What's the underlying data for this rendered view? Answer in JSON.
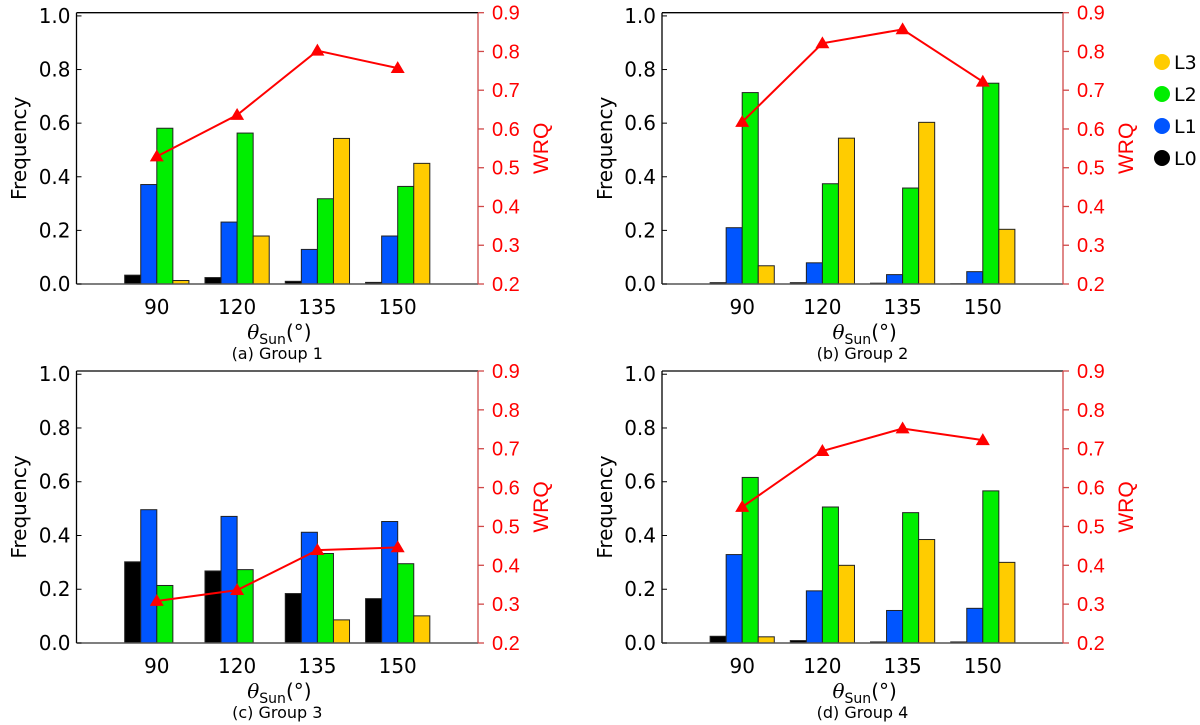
{
  "chart_data": [
    {
      "type": "bar",
      "title": "(a) Group 1",
      "categories": [
        "90",
        "120",
        "135",
        "150"
      ],
      "xlabel": "θ",
      "xlabel_sub": "Sun",
      "xlabel_unit": "(°)",
      "ylabel": "Frequency",
      "ylim": [
        0,
        1.0
      ],
      "yticks": [
        "0.0",
        "0.2",
        "0.4",
        "0.6",
        "0.8",
        "1.0"
      ],
      "y2label": "WRQ",
      "y2lim": [
        0.2,
        0.9
      ],
      "y2ticks": [
        "0.2",
        "0.3",
        "0.4",
        "0.5",
        "0.6",
        "0.7",
        "0.8",
        "0.9"
      ],
      "series": [
        {
          "name": "L0",
          "values": [
            0.033,
            0.024,
            0.01,
            0.006
          ]
        },
        {
          "name": "L1",
          "values": [
            0.371,
            0.231,
            0.129,
            0.179
          ]
        },
        {
          "name": "L2",
          "values": [
            0.581,
            0.563,
            0.318,
            0.364
          ]
        },
        {
          "name": "L3",
          "values": [
            0.013,
            0.179,
            0.543,
            0.45
          ]
        }
      ],
      "line": {
        "name": "WRQ",
        "values": [
          0.529,
          0.636,
          0.802,
          0.757
        ]
      }
    },
    {
      "type": "bar",
      "title": "(b) Group 2",
      "categories": [
        "90",
        "120",
        "135",
        "150"
      ],
      "xlabel": "θ",
      "xlabel_sub": "Sun",
      "xlabel_unit": "(°)",
      "ylabel": "Frequency",
      "ylim": [
        0,
        1.0
      ],
      "yticks": [
        "0.0",
        "0.2",
        "0.4",
        "0.6",
        "0.8",
        "1.0"
      ],
      "y2label": "WRQ",
      "y2lim": [
        0.2,
        0.9
      ],
      "y2ticks": [
        "0.2",
        "0.3",
        "0.4",
        "0.5",
        "0.6",
        "0.7",
        "0.8",
        "0.9"
      ],
      "series": [
        {
          "name": "L0",
          "values": [
            0.005,
            0.005,
            0.003,
            0.001
          ]
        },
        {
          "name": "L1",
          "values": [
            0.21,
            0.079,
            0.035,
            0.046
          ]
        },
        {
          "name": "L2",
          "values": [
            0.714,
            0.374,
            0.358,
            0.749
          ]
        },
        {
          "name": "L3",
          "values": [
            0.068,
            0.544,
            0.603,
            0.204
          ]
        }
      ],
      "line": {
        "name": "WRQ",
        "values": [
          0.618,
          0.821,
          0.857,
          0.722
        ]
      }
    },
    {
      "type": "bar",
      "title": "(c) Group 3",
      "categories": [
        "90",
        "120",
        "135",
        "150"
      ],
      "xlabel": "θ",
      "xlabel_sub": "Sun",
      "xlabel_unit": "(°)",
      "ylabel": "Frequency",
      "ylim": [
        0,
        1.0
      ],
      "yticks": [
        "0.0",
        "0.2",
        "0.4",
        "0.6",
        "0.8",
        "1.0"
      ],
      "y2label": "WRQ",
      "y2lim": [
        0.2,
        0.9
      ],
      "y2ticks": [
        "0.2",
        "0.3",
        "0.4",
        "0.5",
        "0.6",
        "0.7",
        "0.8",
        "0.9"
      ],
      "series": [
        {
          "name": "L0",
          "values": [
            0.302,
            0.268,
            0.184,
            0.165
          ]
        },
        {
          "name": "L1",
          "values": [
            0.496,
            0.471,
            0.412,
            0.452
          ]
        },
        {
          "name": "L2",
          "values": [
            0.214,
            0.273,
            0.333,
            0.295
          ]
        },
        {
          "name": "L3",
          "values": [
            0.0,
            0.0,
            0.086,
            0.101
          ]
        }
      ],
      "line": {
        "name": "WRQ",
        "values": [
          0.308,
          0.336,
          0.439,
          0.446
        ]
      }
    },
    {
      "type": "bar",
      "title": "(d) Group 4",
      "categories": [
        "90",
        "120",
        "135",
        "150"
      ],
      "xlabel": "θ",
      "xlabel_sub": "Sun",
      "xlabel_unit": "(°)",
      "ylabel": "Frequency",
      "ylim": [
        0,
        1.0
      ],
      "yticks": [
        "0.0",
        "0.2",
        "0.4",
        "0.6",
        "0.8",
        "1.0"
      ],
      "y2label": "WRQ",
      "y2lim": [
        0.2,
        0.9
      ],
      "y2ticks": [
        "0.2",
        "0.3",
        "0.4",
        "0.5",
        "0.6",
        "0.7",
        "0.8",
        "0.9"
      ],
      "series": [
        {
          "name": "L0",
          "values": [
            0.025,
            0.009,
            0.004,
            0.004
          ]
        },
        {
          "name": "L1",
          "values": [
            0.329,
            0.194,
            0.121,
            0.129
          ]
        },
        {
          "name": "L2",
          "values": [
            0.616,
            0.506,
            0.485,
            0.566
          ]
        },
        {
          "name": "L3",
          "values": [
            0.023,
            0.289,
            0.385,
            0.3
          ]
        }
      ],
      "line": {
        "name": "WRQ",
        "values": [
          0.55,
          0.694,
          0.752,
          0.722
        ]
      }
    }
  ],
  "legend": {
    "placement": "right",
    "items": [
      {
        "label": "L3",
        "color": "#ffcc00"
      },
      {
        "label": "L2",
        "color": "#00ee00"
      },
      {
        "label": "L1",
        "color": "#0055ff"
      },
      {
        "label": "L0",
        "color": "#000000"
      }
    ]
  },
  "colors": {
    "L0": "#000000",
    "L1": "#0055ff",
    "L2": "#00ee00",
    "L3": "#ffcc00",
    "wrq": "#ff0000",
    "right_axis": "#d04848"
  }
}
